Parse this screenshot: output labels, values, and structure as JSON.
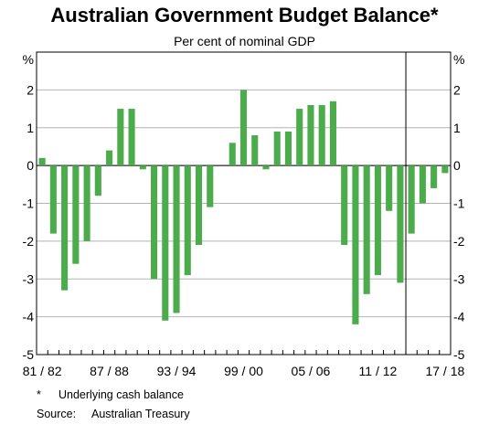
{
  "chart_data": {
    "type": "bar",
    "title": "Australian Government Budget Balance*",
    "subtitle": "Per cent of nominal GDP",
    "ylabel": "%",
    "ylim": [
      -5,
      3
    ],
    "yticks": [
      -5,
      -4,
      -3,
      -2,
      -1,
      0,
      1,
      2
    ],
    "grid": true,
    "x_tick_labels": [
      "81/82",
      "87/88",
      "93/94",
      "99/00",
      "05/06",
      "11/12",
      "17/18"
    ],
    "categories": [
      "81/82",
      "82/83",
      "83/84",
      "84/85",
      "85/86",
      "86/87",
      "87/88",
      "88/89",
      "89/90",
      "90/91",
      "91/92",
      "92/93",
      "93/94",
      "94/95",
      "95/96",
      "96/97",
      "97/98",
      "98/99",
      "99/00",
      "00/01",
      "01/02",
      "02/03",
      "03/04",
      "04/05",
      "05/06",
      "06/07",
      "07/08",
      "08/09",
      "09/10",
      "10/11",
      "11/12",
      "12/13",
      "13/14",
      "14/15",
      "15/16",
      "16/17",
      "17/18"
    ],
    "values": [
      0.2,
      -1.8,
      -3.3,
      -2.6,
      -2.0,
      -0.8,
      0.4,
      1.5,
      1.5,
      -0.1,
      -3.0,
      -4.1,
      -3.9,
      -2.9,
      -2.1,
      -1.1,
      0,
      0.6,
      2.0,
      0.8,
      -0.1,
      0.9,
      0.9,
      1.5,
      1.6,
      1.6,
      1.7,
      -2.1,
      -4.2,
      -3.4,
      -2.9,
      -1.2,
      -3.1,
      -1.8,
      -1.0,
      -0.6,
      -0.2
    ],
    "forecast_divider_after": "13/14",
    "bar_color": "#4cac4c"
  },
  "footnote": {
    "mark": "*",
    "text": "Underlying cash balance"
  },
  "source": {
    "label": "Source:",
    "text": "Australian Treasury"
  }
}
